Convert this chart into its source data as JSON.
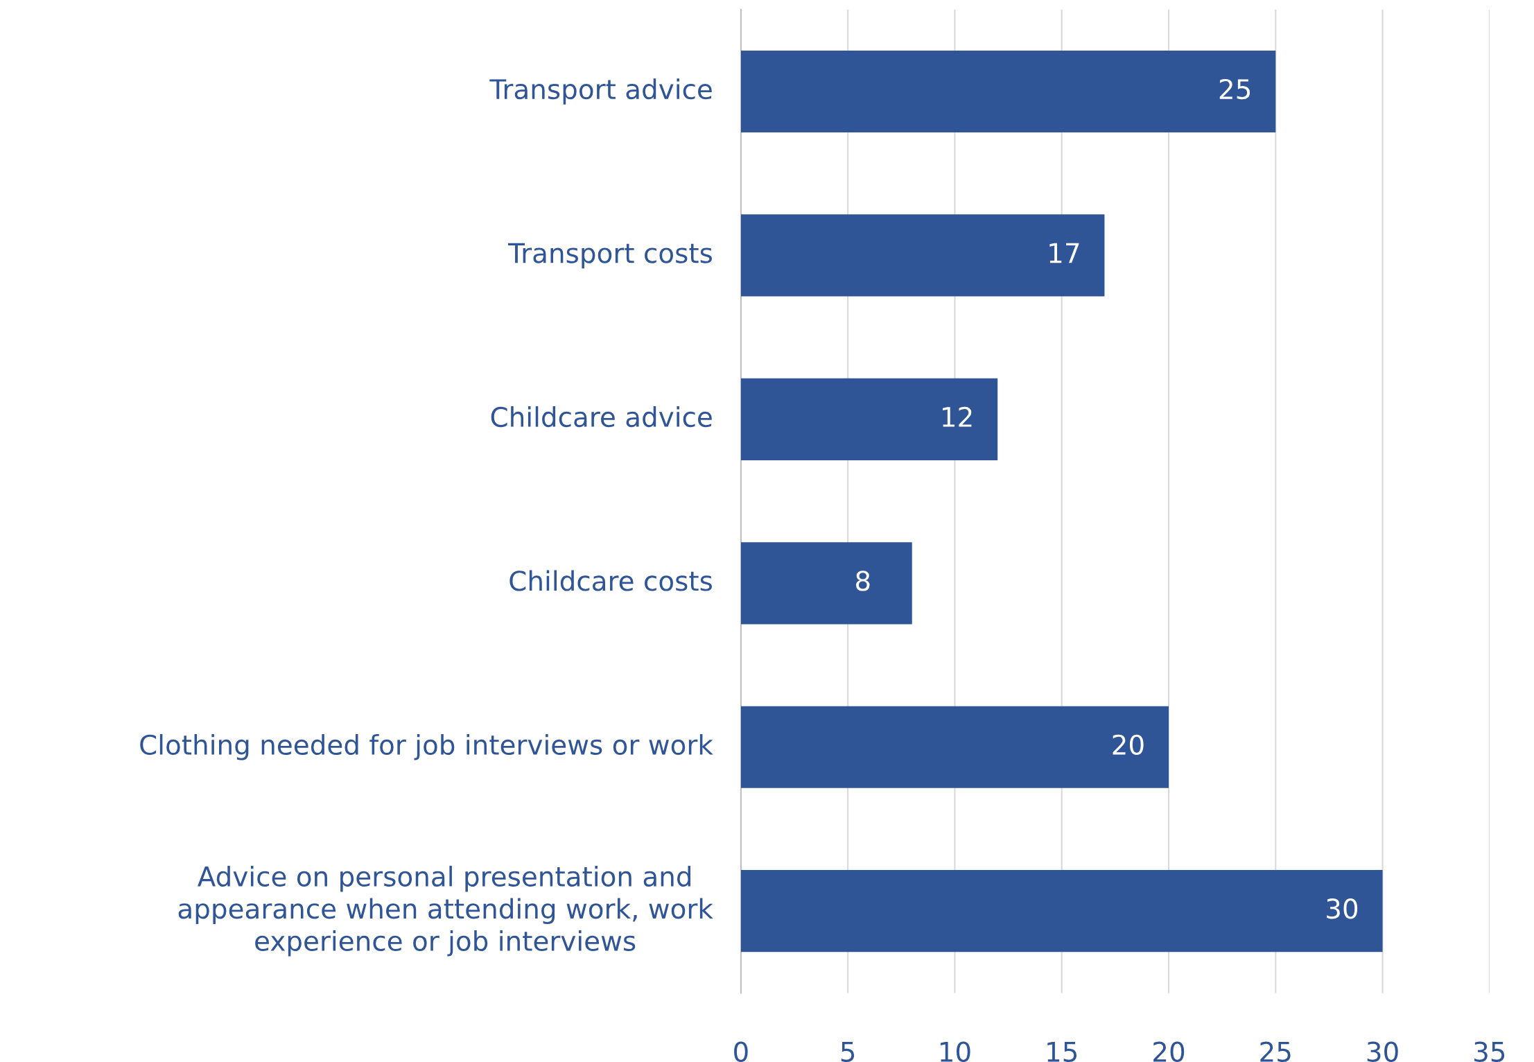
{
  "chart_data": {
    "type": "bar",
    "orientation": "horizontal",
    "categories": [
      "Transport advice",
      "Transport costs",
      "Childcare advice",
      "Childcare costs",
      "Clothing needed for job interviews or work",
      "Advice on personal presentation and appearance when attending work, work experience or job interviews"
    ],
    "values": [
      25,
      17,
      12,
      8,
      20,
      30
    ],
    "color": "#2f5597",
    "xlim": [
      0,
      35
    ],
    "xticks": [
      0,
      5,
      10,
      15,
      20,
      25,
      30,
      35
    ],
    "grid": "x",
    "data_labels": true
  }
}
